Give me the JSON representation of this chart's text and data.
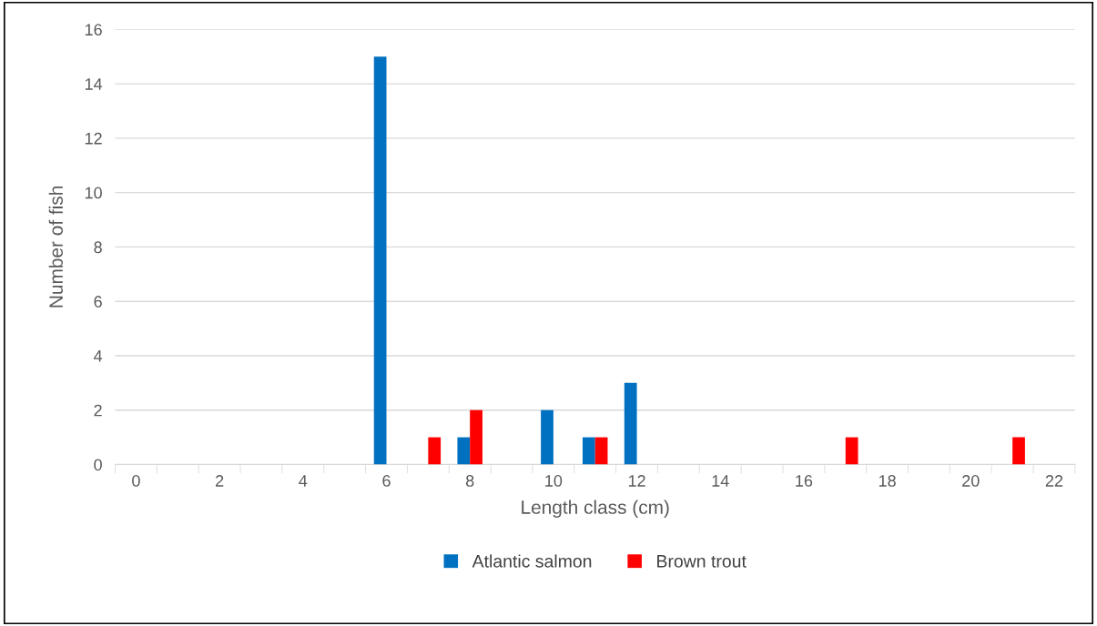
{
  "chart_data": {
    "type": "bar",
    "xlabel": "Length class (cm)",
    "ylabel": "Number of fish",
    "categories": [
      "0",
      null,
      "2",
      null,
      "4",
      null,
      "6",
      null,
      "8",
      null,
      "10",
      null,
      "12",
      null,
      "14",
      null,
      "16",
      null,
      "18",
      null,
      "20",
      null,
      "22"
    ],
    "series": [
      {
        "name": "Atlantic salmon",
        "color": "#0070c0",
        "values": [
          0,
          0,
          0,
          0,
          0,
          0,
          15,
          0,
          1,
          0,
          2,
          1,
          3,
          0,
          0,
          0,
          0,
          0,
          0,
          0,
          0,
          0,
          0
        ]
      },
      {
        "name": "Brown trout",
        "color": "#ff0000",
        "values": [
          0,
          0,
          0,
          0,
          0,
          0,
          0,
          1,
          2,
          0,
          0,
          1,
          0,
          0,
          0,
          0,
          0,
          1,
          0,
          0,
          0,
          1,
          0
        ]
      }
    ],
    "ylim": [
      0,
      16
    ],
    "yticks": [
      0,
      2,
      4,
      6,
      8,
      10,
      12,
      14,
      16
    ],
    "grid": "y",
    "legend": "bottom"
  }
}
